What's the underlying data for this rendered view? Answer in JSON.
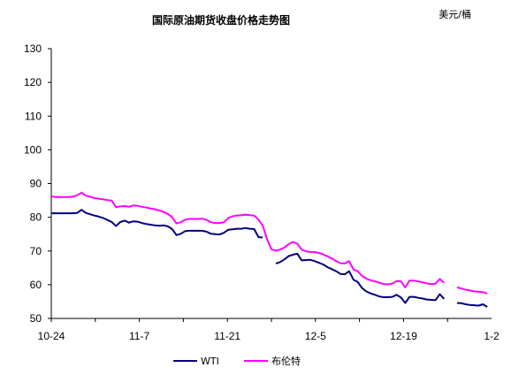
{
  "chart_data": {
    "type": "line",
    "title": "国际原油期货收盘价格走势图",
    "unit": "美元/桶",
    "ylim": [
      50,
      130
    ],
    "yticks": [
      "50",
      "60",
      "70",
      "80",
      "90",
      "100",
      "110",
      "120",
      "130"
    ],
    "xticks": [
      "10-24",
      "11-7",
      "11-21",
      "12-5",
      "12-19",
      "1-2"
    ],
    "grid": false,
    "legend_position": "bottom",
    "series": [
      {
        "name": "WTI",
        "color": "#000080",
        "points": [
          [
            0,
            81.2
          ],
          [
            1,
            81.2
          ],
          [
            2,
            81.2
          ],
          [
            3,
            81.2
          ],
          [
            4,
            81.2
          ],
          [
            5,
            81.2
          ],
          [
            6,
            81.3
          ],
          [
            7,
            82.2
          ],
          [
            8,
            81.3
          ],
          [
            9,
            80.9
          ],
          [
            10,
            80.5
          ],
          [
            11,
            80.2
          ],
          [
            12,
            79.8
          ],
          [
            13,
            79.2
          ],
          [
            14,
            78.6
          ],
          [
            15,
            77.4
          ],
          [
            16,
            78.6
          ],
          [
            17,
            79.0
          ],
          [
            18,
            78.4
          ],
          [
            19,
            78.8
          ],
          [
            20,
            78.7
          ],
          [
            21,
            78.3
          ],
          [
            22,
            78.0
          ],
          [
            23,
            77.8
          ],
          [
            24,
            77.6
          ],
          [
            25,
            77.5
          ],
          [
            26,
            77.6
          ],
          [
            27,
            77.3
          ],
          [
            28,
            76.5
          ],
          [
            29,
            74.7
          ],
          [
            30,
            75.1
          ],
          [
            31,
            75.9
          ],
          [
            32,
            76.0
          ],
          [
            33,
            76.0
          ],
          [
            34,
            76.0
          ],
          [
            35,
            76.0
          ],
          [
            36,
            75.7
          ],
          [
            37,
            75.1
          ],
          [
            38,
            75.0
          ],
          [
            39,
            74.9
          ],
          [
            40,
            75.4
          ],
          [
            41,
            76.3
          ],
          [
            42,
            76.4
          ],
          [
            43,
            76.6
          ],
          [
            44,
            76.6
          ],
          [
            45,
            76.8
          ],
          [
            46,
            76.6
          ],
          [
            47,
            76.5
          ],
          [
            48,
            74.1
          ],
          [
            49,
            74.0
          ],
          [
            50,
            null
          ],
          [
            51,
            null
          ],
          [
            52,
            66.3
          ],
          [
            53,
            66.7
          ],
          [
            54,
            67.5
          ],
          [
            55,
            68.5
          ],
          [
            56,
            68.9
          ],
          [
            57,
            69.2
          ],
          [
            58,
            67.2
          ],
          [
            59,
            67.3
          ],
          [
            60,
            67.4
          ],
          [
            61,
            67.0
          ],
          [
            62,
            66.5
          ],
          [
            63,
            66.0
          ],
          [
            64,
            65.2
          ],
          [
            65,
            64.6
          ],
          [
            66,
            64.0
          ],
          [
            67,
            63.2
          ],
          [
            68,
            63.1
          ],
          [
            69,
            64.0
          ],
          [
            70,
            61.5
          ],
          [
            71,
            60.8
          ],
          [
            72,
            59.0
          ],
          [
            73,
            58.0
          ],
          [
            74,
            57.4
          ],
          [
            75,
            57.0
          ],
          [
            76,
            56.5
          ],
          [
            77,
            56.3
          ],
          [
            78,
            56.3
          ],
          [
            79,
            56.4
          ],
          [
            80,
            57.0
          ],
          [
            81,
            56.2
          ],
          [
            82,
            54.6
          ],
          [
            83,
            56.4
          ],
          [
            84,
            56.4
          ],
          [
            85,
            56.1
          ],
          [
            86,
            55.9
          ],
          [
            87,
            55.6
          ],
          [
            88,
            55.5
          ],
          [
            89,
            55.4
          ],
          [
            90,
            57.2
          ],
          [
            91,
            55.8
          ],
          [
            92,
            null
          ],
          [
            93,
            null
          ],
          [
            94,
            54.6
          ],
          [
            95,
            54.5
          ],
          [
            96,
            54.2
          ],
          [
            97,
            54.0
          ],
          [
            98,
            53.9
          ],
          [
            99,
            53.8
          ],
          [
            100,
            54.2
          ],
          [
            101,
            53.4
          ]
        ]
      },
      {
        "name": "布伦特",
        "color": "#ff00ff",
        "points": [
          [
            0,
            86.2
          ],
          [
            1,
            86.0
          ],
          [
            2,
            86.0
          ],
          [
            3,
            86.0
          ],
          [
            4,
            86.0
          ],
          [
            5,
            86.1
          ],
          [
            6,
            86.5
          ],
          [
            7,
            87.3
          ],
          [
            8,
            86.4
          ],
          [
            9,
            86.1
          ],
          [
            10,
            85.7
          ],
          [
            11,
            85.5
          ],
          [
            12,
            85.3
          ],
          [
            13,
            85.1
          ],
          [
            14,
            84.9
          ],
          [
            15,
            83.0
          ],
          [
            16,
            83.2
          ],
          [
            17,
            83.3
          ],
          [
            18,
            83.1
          ],
          [
            19,
            83.5
          ],
          [
            20,
            83.4
          ],
          [
            21,
            83.1
          ],
          [
            22,
            82.9
          ],
          [
            23,
            82.6
          ],
          [
            24,
            82.4
          ],
          [
            25,
            82.0
          ],
          [
            26,
            81.6
          ],
          [
            27,
            81.0
          ],
          [
            28,
            80.0
          ],
          [
            29,
            78.2
          ],
          [
            30,
            78.5
          ],
          [
            31,
            79.3
          ],
          [
            32,
            79.5
          ],
          [
            33,
            79.5
          ],
          [
            34,
            79.5
          ],
          [
            35,
            79.6
          ],
          [
            36,
            79.2
          ],
          [
            37,
            78.5
          ],
          [
            38,
            78.3
          ],
          [
            39,
            78.3
          ],
          [
            40,
            78.5
          ],
          [
            41,
            79.8
          ],
          [
            42,
            80.3
          ],
          [
            43,
            80.5
          ],
          [
            44,
            80.6
          ],
          [
            45,
            80.8
          ],
          [
            46,
            80.6
          ],
          [
            47,
            80.5
          ],
          [
            48,
            79.3
          ],
          [
            49,
            77.5
          ],
          [
            50,
            73.5
          ],
          [
            51,
            70.5
          ],
          [
            52,
            70.1
          ],
          [
            53,
            70.4
          ],
          [
            54,
            71.0
          ],
          [
            55,
            72.0
          ],
          [
            56,
            72.7
          ],
          [
            57,
            72.2
          ],
          [
            58,
            70.4
          ],
          [
            59,
            69.9
          ],
          [
            60,
            69.7
          ],
          [
            61,
            69.7
          ],
          [
            62,
            69.4
          ],
          [
            63,
            69.0
          ],
          [
            64,
            68.4
          ],
          [
            65,
            67.8
          ],
          [
            66,
            67.0
          ],
          [
            67,
            66.4
          ],
          [
            68,
            66.3
          ],
          [
            69,
            67.0
          ],
          [
            70,
            64.5
          ],
          [
            71,
            64.0
          ],
          [
            72,
            62.6
          ],
          [
            73,
            61.8
          ],
          [
            74,
            61.3
          ],
          [
            75,
            61.0
          ],
          [
            76,
            60.6
          ],
          [
            77,
            60.2
          ],
          [
            78,
            60.1
          ],
          [
            79,
            60.3
          ],
          [
            80,
            61.1
          ],
          [
            81,
            61.0
          ],
          [
            82,
            59.2
          ],
          [
            83,
            61.2
          ],
          [
            84,
            61.2
          ],
          [
            85,
            61.0
          ],
          [
            86,
            60.7
          ],
          [
            87,
            60.4
          ],
          [
            88,
            60.2
          ],
          [
            89,
            60.3
          ],
          [
            90,
            61.7
          ],
          [
            91,
            60.6
          ],
          [
            92,
            null
          ],
          [
            93,
            null
          ],
          [
            94,
            59.2
          ],
          [
            95,
            58.9
          ],
          [
            96,
            58.5
          ],
          [
            97,
            58.3
          ],
          [
            98,
            58.0
          ],
          [
            99,
            57.9
          ],
          [
            100,
            57.8
          ],
          [
            101,
            57.4
          ]
        ]
      }
    ]
  }
}
